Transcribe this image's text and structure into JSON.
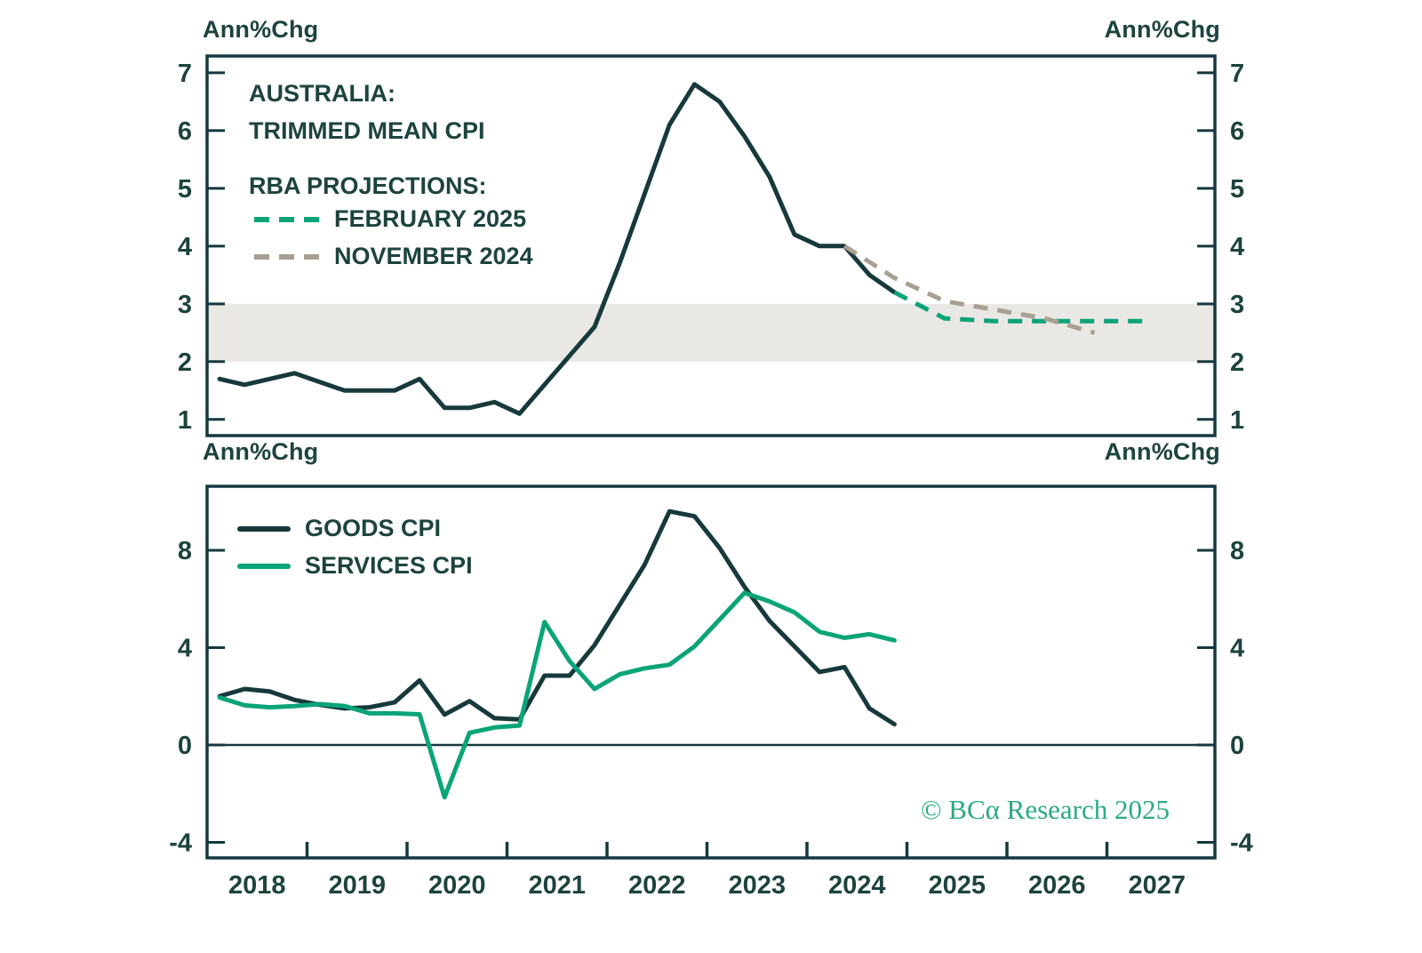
{
  "labels": {
    "annchg": "Ann%Chg"
  },
  "watermark": {
    "text": "© BCα Research 2025"
  },
  "colors": {
    "dark_line": "#17393b",
    "green_line": "#0aa478",
    "gray_dash": "#a89f93",
    "band": "#e9e8e4",
    "axis": "#15383f",
    "text": "#1d433f",
    "watermark_green": "#2baa80"
  },
  "chart_data": [
    {
      "type": "line",
      "title_line1": "AUSTRALIA:",
      "title_line2": "TRIMMED MEAN CPI",
      "legend_heading": "RBA PROJECTIONS:",
      "ylabel_left": "Ann%Chg",
      "ylabel_right": "Ann%Chg",
      "yticks": [
        1,
        2,
        3,
        4,
        5,
        6,
        7
      ],
      "ylim": [
        0.72,
        7.29
      ],
      "xlim": [
        2018.0,
        2028.08
      ],
      "grid": false,
      "target_band": [
        2,
        3
      ],
      "series": [
        {
          "name": "TRIMMED MEAN CPI",
          "style": "solid",
          "color_key": "dark_line",
          "x_start": 2018.125,
          "x_step": 0.25,
          "values": [
            1.7,
            1.6,
            1.7,
            1.8,
            1.65,
            1.5,
            1.5,
            1.5,
            1.7,
            1.2,
            1.2,
            1.3,
            1.1,
            1.6,
            2.1,
            2.6,
            3.7,
            4.9,
            6.1,
            6.8,
            6.5,
            5.9,
            5.2,
            4.2,
            4.0,
            4.0,
            3.5,
            3.2
          ]
        },
        {
          "name": "FEBRUARY 2025",
          "style": "dashed",
          "color_key": "green_line",
          "x": [
            2024.875,
            2025.375,
            2025.875,
            2026.375,
            2026.875,
            2027.375
          ],
          "values": [
            3.2,
            2.75,
            2.7,
            2.7,
            2.7,
            2.7
          ]
        },
        {
          "name": "NOVEMBER 2024",
          "style": "dashed",
          "color_key": "gray_dash",
          "x": [
            2024.375,
            2024.875,
            2025.375,
            2025.875,
            2026.375,
            2026.875
          ],
          "values": [
            4.0,
            3.45,
            3.05,
            2.9,
            2.75,
            2.5
          ]
        }
      ]
    },
    {
      "type": "line",
      "ylabel_left": "Ann%Chg",
      "ylabel_right": "Ann%Chg",
      "yticks": [
        -4,
        0,
        4,
        8
      ],
      "ylim": [
        -4.64,
        10.63
      ],
      "xlim": [
        2018.0,
        2028.08
      ],
      "grid": false,
      "zero_line": true,
      "xticks": [
        2019,
        2020,
        2021,
        2022,
        2023,
        2024,
        2025,
        2026,
        2027
      ],
      "xtick_labels": [
        "2018",
        "2019",
        "2020",
        "2021",
        "2022",
        "2023",
        "2024",
        "2025",
        "2026",
        "2027"
      ],
      "series": [
        {
          "name": "GOODS CPI",
          "style": "solid",
          "color_key": "dark_line",
          "x_start": 2018.125,
          "x_step": 0.25,
          "values": [
            2.0,
            2.3,
            2.2,
            1.85,
            1.65,
            1.5,
            1.55,
            1.75,
            2.65,
            1.25,
            1.8,
            1.1,
            1.05,
            2.85,
            2.85,
            4.1,
            5.75,
            7.4,
            9.6,
            9.4,
            8.1,
            6.5,
            5.1,
            4.05,
            3.0,
            3.2,
            1.5,
            0.85
          ]
        },
        {
          "name": "SERVICES CPI",
          "style": "solid",
          "color_key": "green_line",
          "x_start": 2018.125,
          "x_step": 0.25,
          "values": [
            1.95,
            1.63,
            1.55,
            1.6,
            1.68,
            1.6,
            1.3,
            1.3,
            1.26,
            -2.15,
            0.5,
            0.72,
            0.8,
            5.05,
            3.45,
            2.3,
            2.9,
            3.15,
            3.3,
            4.05,
            5.15,
            6.25,
            5.9,
            5.45,
            4.65,
            4.4,
            4.55,
            4.3
          ]
        }
      ]
    }
  ]
}
